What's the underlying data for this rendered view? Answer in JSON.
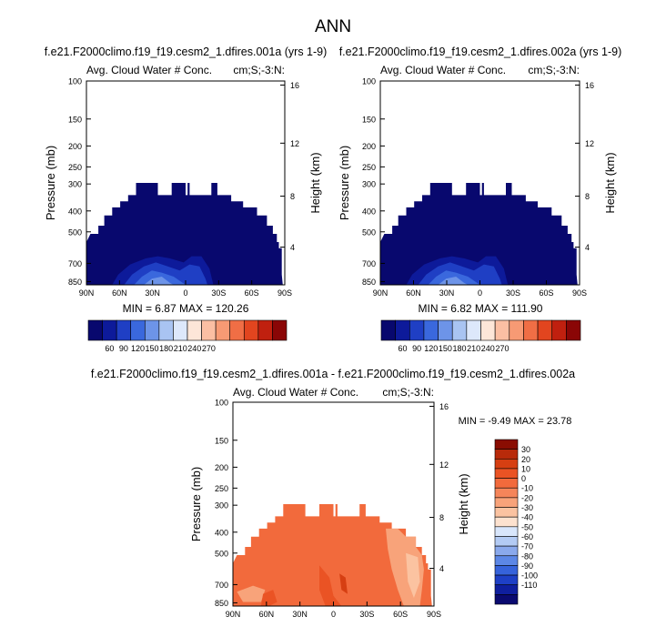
{
  "main_title": "ANN",
  "colors": {
    "abs_palette": [
      "#08086e",
      "#0d1a9a",
      "#1f3fc4",
      "#3a68dd",
      "#6d94e8",
      "#a9c4f2",
      "#dde8fb",
      "#fde6d8",
      "#fbbfa3",
      "#f79a74",
      "#f06e45",
      "#e2451f",
      "#c0200f",
      "#8a0606"
    ],
    "diff_palette": [
      "#0a0a70",
      "#0f1f9e",
      "#1e40c6",
      "#3663db",
      "#5c87e6",
      "#8aa9ec",
      "#b3cbf4",
      "#d8e6fb",
      "#fde2cf",
      "#fbc3a1",
      "#f8a37a",
      "#f5855a",
      "#f26a3c",
      "#ea5324",
      "#d63f12",
      "#b82a0a",
      "#8a0d02"
    ]
  },
  "chart_data": [
    {
      "type": "contour",
      "case_title": "f.e21.F2000climo.f19_f19.cesm2_1.dfires.001a (yrs 1-9)",
      "left_label": "Avg. Cloud Water # Conc.",
      "right_label": "cm;S;-3:N:",
      "ylabel": "Pressure (mb)",
      "y2label": "Height (km)",
      "x_ticks": [
        "90N",
        "60N",
        "30N",
        "0",
        "30S",
        "60S",
        "90S"
      ],
      "y_ticks": [
        "100",
        "150",
        "200",
        "250",
        "300",
        "400",
        "500",
        "700",
        "850"
      ],
      "y2_ticks": [
        "16",
        "12",
        "8",
        "4"
      ],
      "stats": "MIN =  6.87  MAX = 120.26",
      "colorbar_labels": [
        "60",
        "90",
        "120",
        "150",
        "180",
        "210",
        "240",
        "270"
      ]
    },
    {
      "type": "contour",
      "case_title": "f.e21.F2000climo.f19_f19.cesm2_1.dfires.002a (yrs 1-9)",
      "left_label": "Avg. Cloud Water # Conc.",
      "right_label": "cm;S;-3:N:",
      "ylabel": "Pressure (mb)",
      "y2label": "Height (km)",
      "x_ticks": [
        "90N",
        "60N",
        "30N",
        "0",
        "30S",
        "60S",
        "90S"
      ],
      "y_ticks": [
        "100",
        "150",
        "200",
        "250",
        "300",
        "400",
        "500",
        "700",
        "850"
      ],
      "y2_ticks": [
        "16",
        "12",
        "8",
        "4"
      ],
      "stats": "MIN =  6.82  MAX = 111.90",
      "colorbar_labels": [
        "60",
        "90",
        "120",
        "150",
        "180",
        "210",
        "240",
        "270"
      ]
    },
    {
      "type": "contour",
      "case_title": "f.e21.F2000climo.f19_f19.cesm2_1.dfires.001a - f.e21.F2000climo.f19_f19.cesm2_1.dfires.002a",
      "left_label": "Avg. Cloud Water # Conc.",
      "right_label": "cm;S;-3:N:",
      "ylabel": "Pressure (mb)",
      "y2label": "Height (km)",
      "x_ticks": [
        "90N",
        "60N",
        "30N",
        "0",
        "30S",
        "60S",
        "90S"
      ],
      "y_ticks": [
        "100",
        "150",
        "200",
        "250",
        "300",
        "400",
        "500",
        "700",
        "850"
      ],
      "y2_ticks": [
        "16",
        "12",
        "8",
        "4"
      ],
      "stats": "MIN =  -9.49  MAX =  23.78",
      "colorbar_labels": [
        "30",
        "20",
        "10",
        "0",
        "-10",
        "-20",
        "-30",
        "-40",
        "-50",
        "-60",
        "-70",
        "-80",
        "-90",
        "-100",
        "-110"
      ]
    }
  ]
}
